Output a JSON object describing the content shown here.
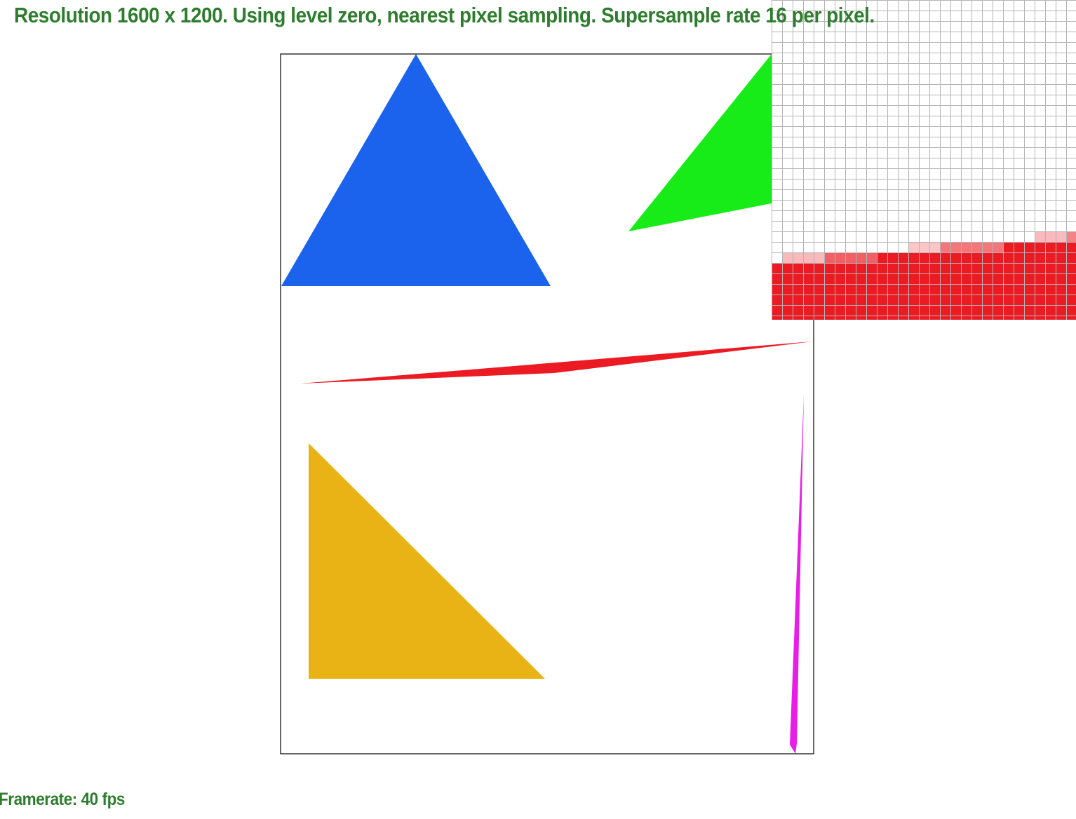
{
  "header": {
    "resolution_text": "Resolution 1600 x 1200. Using level zero, nearest pixel sampling. Supersample rate 16 per pixel."
  },
  "footer": {
    "framerate_text": "Framerate: 40 fps"
  },
  "colors": {
    "status_text": "#2e7d2e",
    "triangle_blue": "#1b63ec",
    "triangle_green": "#18ec18",
    "triangle_red": "#ec1b23",
    "triangle_yellow": "#e9b316",
    "triangle_magenta": "#e81ee8",
    "frame_border": "#000000",
    "zoom_grid": "#b4b4b4"
  },
  "scene": {
    "triangles": [
      {
        "name": "blue-triangle",
        "color": "triangle_blue"
      },
      {
        "name": "green-triangle",
        "color": "triangle_green"
      },
      {
        "name": "red-sliver-triangle",
        "color": "triangle_red"
      },
      {
        "name": "yellow-triangle",
        "color": "triangle_yellow"
      },
      {
        "name": "magenta-sliver-triangle",
        "color": "triangle_magenta"
      }
    ]
  },
  "zoom_view": {
    "description_icon": "pixel-inspector-grid"
  }
}
